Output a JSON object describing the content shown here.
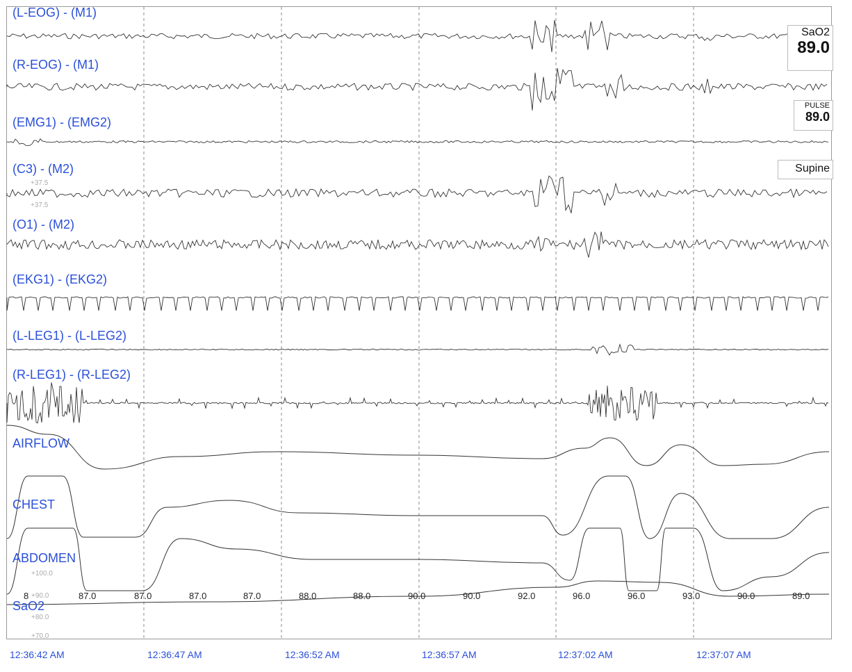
{
  "channels": [
    {
      "label": "(L-EOG) - (M1)"
    },
    {
      "label": "(R-EOG) - (M1)"
    },
    {
      "label": "(EMG1) - (EMG2)"
    },
    {
      "label": "(C3) - (M2)"
    },
    {
      "label": "(O1) - (M2)"
    },
    {
      "label": "(EKG1) - (EKG2)"
    },
    {
      "label": "(L-LEG1) - (L-LEG2)"
    },
    {
      "label": "(R-LEG1) - (R-LEG2)"
    },
    {
      "label": "AIRFLOW"
    },
    {
      "label": "CHEST"
    },
    {
      "label": "ABDOMEN"
    },
    {
      "label": "SaO2"
    }
  ],
  "readouts": {
    "sao2_label": "SaO2",
    "sao2_value": "89.0",
    "pulse_label": "PULSE",
    "pulse_value": "89.0",
    "position": "Supine"
  },
  "sao2_values": [
    "8",
    "87.0",
    "87.0",
    "87.0",
    "87.0",
    "88.0",
    "88.0",
    "90.0",
    "90.0",
    "92.0",
    "96.0",
    "96.0",
    "93.0",
    "90.0",
    "89.0"
  ],
  "scale_ticks": [
    "+100.0",
    "+90.0",
    "+80.0",
    "+70.0"
  ],
  "c3_scale": [
    "+37.5",
    "+37.5"
  ],
  "timestamps": [
    "12:36:42 AM",
    "12:36:47 AM",
    "12:36:52 AM",
    "12:36:57 AM",
    "12:37:02 AM",
    "12:37:07 AM"
  ],
  "colors": {
    "label": "#2a4fd8",
    "trace": "#333333",
    "grid": "#888888"
  }
}
